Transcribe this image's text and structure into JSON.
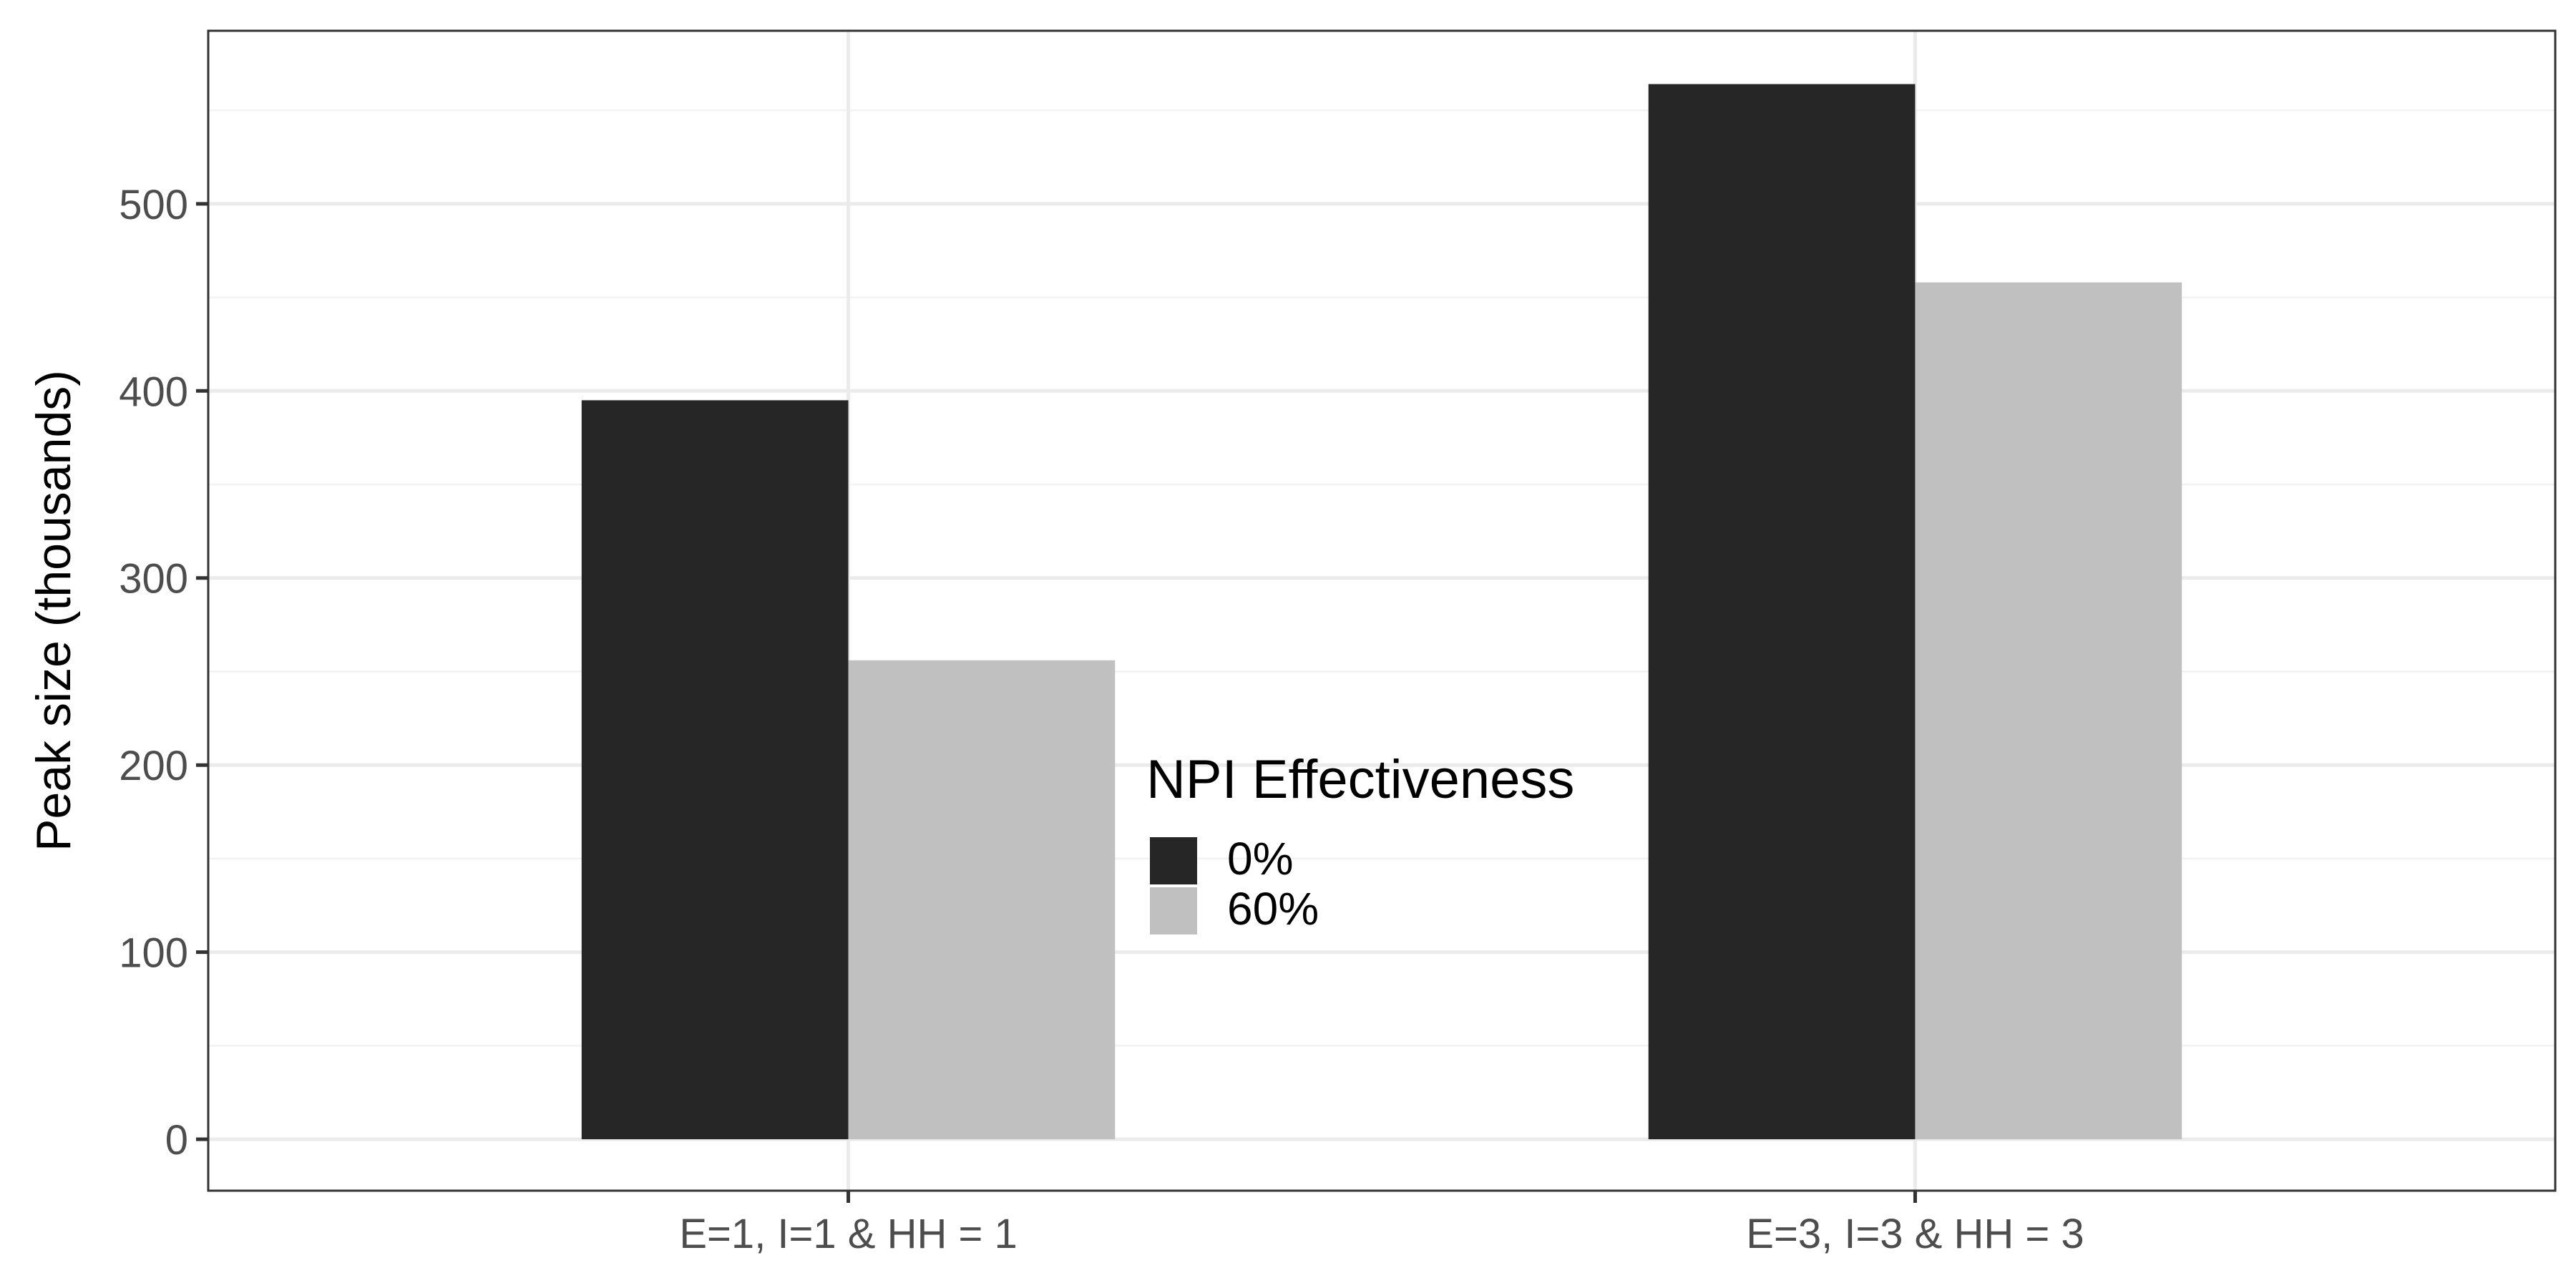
{
  "chart_data": {
    "type": "bar",
    "title": "",
    "xlabel": "",
    "ylabel": "Peak size (thousands)",
    "categories": [
      "E=1, I=1 & HH = 1",
      "E=3, I=3 & HH = 3"
    ],
    "series": [
      {
        "name": "0%",
        "values": [
          395,
          564
        ],
        "color": "#262626"
      },
      {
        "name": "60%",
        "values": [
          256,
          458
        ],
        "color": "#c0c0c0"
      }
    ],
    "ylim": [
      -27.5,
      592.5
    ],
    "yticks": [
      0,
      100,
      200,
      300,
      400,
      500
    ],
    "ytick_labels": [
      "0",
      "100",
      "200",
      "300",
      "400",
      "500"
    ],
    "grid": true,
    "legend": {
      "title": "NPI Effectiveness",
      "position": "center-inside"
    },
    "colors": {
      "panel_border": "#333333",
      "grid_major": "#ebebeb",
      "grid_minor": "#f2f2f2",
      "tick_text": "#4d4d4d"
    }
  }
}
